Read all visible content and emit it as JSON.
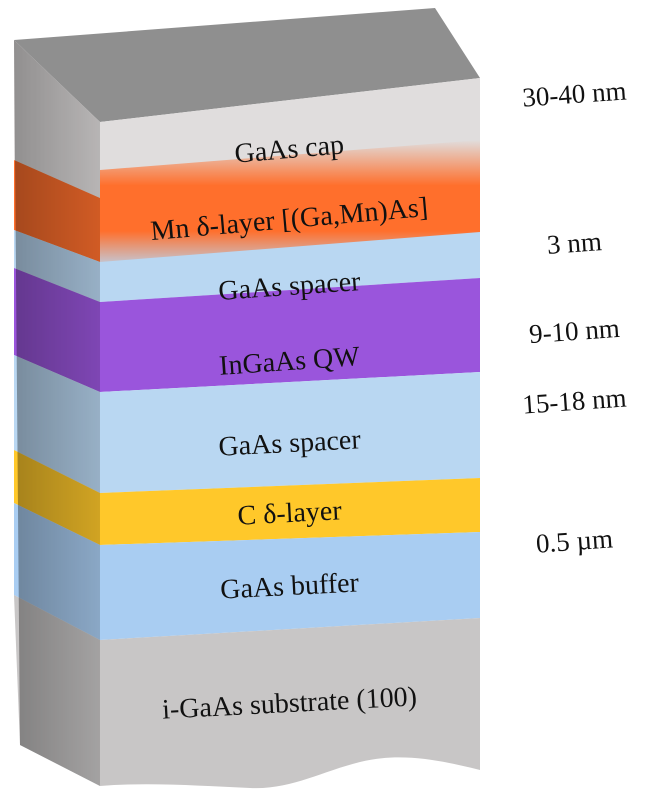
{
  "layers": [
    {
      "id": "cap",
      "label": "GaAs cap",
      "color": "#e0dddd"
    },
    {
      "id": "mn-delta",
      "label": "Mn δ-layer [(Ga,Mn)As]",
      "color": "#ff6f2c"
    },
    {
      "id": "spacer-top",
      "label": "GaAs spacer",
      "color": "#b9d7f2"
    },
    {
      "id": "qw",
      "label": "InGaAs QW",
      "color": "#9a55dc"
    },
    {
      "id": "spacer-bottom",
      "label": "GaAs spacer",
      "color": "#b9d7f2"
    },
    {
      "id": "c-delta",
      "label": "C δ-layer",
      "color": "#ffc82a"
    },
    {
      "id": "buffer",
      "label": "GaAs buffer",
      "color": "#a9cdf2"
    },
    {
      "id": "substrate",
      "label": "i-GaAs substrate (100)",
      "color": "#c8c6c6"
    }
  ],
  "thicknesses": [
    {
      "for": "cap",
      "text": "30-40 nm"
    },
    {
      "for": "spacer-top",
      "text": "3 nm"
    },
    {
      "for": "qw",
      "text": "9-10 nm"
    },
    {
      "for": "spacer-bottom",
      "text": "15-18 nm"
    },
    {
      "for": "buffer",
      "text": "0.5 µm"
    }
  ],
  "colors": {
    "top_face": "#8f8f8f",
    "side_dark": "#7a7a7a"
  }
}
